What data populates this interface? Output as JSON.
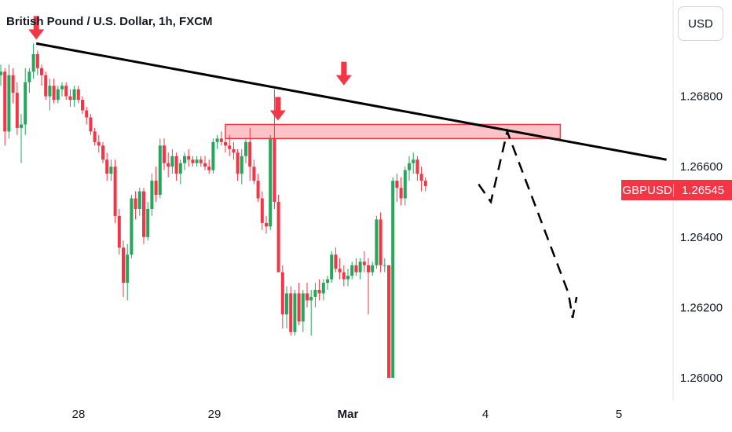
{
  "title": "British Pound / U.S. Dollar, 1h, FXCM",
  "currency_button": "USD",
  "last_price": {
    "symbol": "GBPUSD",
    "value": "1.26545"
  },
  "colors": {
    "up": "#26a65b",
    "down": "#f23645",
    "trendline": "#000000",
    "zone": "#f23645"
  },
  "chart_data": {
    "type": "candlestick",
    "y_ticks": [
      "1.26800",
      "1.26600",
      "1.26400",
      "1.26200",
      "1.26000"
    ],
    "x_ticks": [
      "28",
      "29",
      "Mar",
      "4",
      "5"
    ],
    "ylim": [
      1.2596,
      1.27
    ],
    "grid": false,
    "candles": [
      [
        1.2686,
        1.2689,
        1.2683,
        1.2687
      ],
      [
        1.2687,
        1.2688,
        1.2666,
        1.267
      ],
      [
        1.267,
        1.2689,
        1.2668,
        1.2686
      ],
      [
        1.2686,
        1.2688,
        1.2678,
        1.2681
      ],
      [
        1.2681,
        1.2684,
        1.2669,
        1.2671
      ],
      [
        1.2671,
        1.2675,
        1.2661,
        1.2672
      ],
      [
        1.2672,
        1.2688,
        1.2669,
        1.2684
      ],
      [
        1.2684,
        1.2688,
        1.2681,
        1.2687
      ],
      [
        1.2687,
        1.2695,
        1.2685,
        1.2692
      ],
      [
        1.2692,
        1.2693,
        1.2686,
        1.2688
      ],
      [
        1.2688,
        1.2689,
        1.2683,
        1.2686
      ],
      [
        1.2686,
        1.2687,
        1.2679,
        1.268
      ],
      [
        1.268,
        1.2685,
        1.2676,
        1.2683
      ],
      [
        1.2683,
        1.2685,
        1.2678,
        1.2679
      ],
      [
        1.2679,
        1.2683,
        1.2678,
        1.2682
      ],
      [
        1.2682,
        1.2684,
        1.268,
        1.2683
      ],
      [
        1.2683,
        1.2684,
        1.2679,
        1.268
      ],
      [
        1.268,
        1.2682,
        1.2677,
        1.2679
      ],
      [
        1.2679,
        1.2683,
        1.2677,
        1.2682
      ],
      [
        1.2682,
        1.2683,
        1.2678,
        1.2679
      ],
      [
        1.2679,
        1.268,
        1.2675,
        1.2676
      ],
      [
        1.2676,
        1.2677,
        1.2672,
        1.2674
      ],
      [
        1.2674,
        1.2675,
        1.2669,
        1.267
      ],
      [
        1.267,
        1.2671,
        1.2666,
        1.2667
      ],
      [
        1.2667,
        1.2669,
        1.2664,
        1.2666
      ],
      [
        1.2666,
        1.2667,
        1.2661,
        1.2662
      ],
      [
        1.2662,
        1.2664,
        1.2656,
        1.2658
      ],
      [
        1.2658,
        1.2662,
        1.2656,
        1.266
      ],
      [
        1.266,
        1.2662,
        1.2644,
        1.2646
      ],
      [
        1.2646,
        1.2648,
        1.2635,
        1.2637
      ],
      [
        1.2637,
        1.2639,
        1.2623,
        1.2627
      ],
      [
        1.2627,
        1.2638,
        1.2622,
        1.2635
      ],
      [
        1.2635,
        1.2652,
        1.2634,
        1.2651
      ],
      [
        1.2651,
        1.2653,
        1.2645,
        1.2648
      ],
      [
        1.2648,
        1.2654,
        1.2646,
        1.2653
      ],
      [
        1.2653,
        1.2654,
        1.2638,
        1.264
      ],
      [
        1.264,
        1.265,
        1.2639,
        1.2648
      ],
      [
        1.2648,
        1.2658,
        1.2646,
        1.2656
      ],
      [
        1.2656,
        1.266,
        1.265,
        1.2652
      ],
      [
        1.2652,
        1.2668,
        1.2651,
        1.2666
      ],
      [
        1.2666,
        1.2668,
        1.2659,
        1.2661
      ],
      [
        1.2661,
        1.2664,
        1.2657,
        1.266
      ],
      [
        1.266,
        1.2665,
        1.2658,
        1.2663
      ],
      [
        1.2663,
        1.2664,
        1.2656,
        1.2658
      ],
      [
        1.2658,
        1.2662,
        1.2655,
        1.2661
      ],
      [
        1.2661,
        1.2664,
        1.2659,
        1.2663
      ],
      [
        1.2663,
        1.2665,
        1.266,
        1.2662
      ],
      [
        1.2662,
        1.2663,
        1.266,
        1.2661
      ],
      [
        1.2661,
        1.2663,
        1.266,
        1.2662
      ],
      [
        1.2662,
        1.2663,
        1.266,
        1.2661
      ],
      [
        1.2661,
        1.2663,
        1.2659,
        1.266
      ],
      [
        1.266,
        1.2662,
        1.2658,
        1.2659
      ],
      [
        1.2659,
        1.2668,
        1.2658,
        1.2667
      ],
      [
        1.2667,
        1.2669,
        1.2665,
        1.2668
      ],
      [
        1.2668,
        1.267,
        1.2666,
        1.2667
      ],
      [
        1.2667,
        1.2669,
        1.2664,
        1.2666
      ],
      [
        1.2666,
        1.2669,
        1.2663,
        1.2665
      ],
      [
        1.2665,
        1.2667,
        1.2662,
        1.2664
      ],
      [
        1.2664,
        1.2665,
        1.2656,
        1.2658
      ],
      [
        1.2658,
        1.2665,
        1.2655,
        1.2663
      ],
      [
        1.2663,
        1.2668,
        1.2661,
        1.2667
      ],
      [
        1.2667,
        1.2671,
        1.2656,
        1.266
      ],
      [
        1.266,
        1.2662,
        1.2655,
        1.2656
      ],
      [
        1.2656,
        1.2658,
        1.265,
        1.2651
      ],
      [
        1.2651,
        1.2653,
        1.2642,
        1.2644
      ],
      [
        1.2644,
        1.2646,
        1.2641,
        1.2643
      ],
      [
        1.2643,
        1.2669,
        1.2642,
        1.2668
      ],
      [
        1.2668,
        1.2682,
        1.2648,
        1.265
      ],
      [
        1.265,
        1.2652,
        1.263,
        1.263
      ],
      [
        1.263,
        1.2632,
        1.2614,
        1.2618
      ],
      [
        1.2618,
        1.2626,
        1.2614,
        1.2624
      ],
      [
        1.2624,
        1.2626,
        1.2612,
        1.2613
      ],
      [
        1.2613,
        1.2625,
        1.2612,
        1.2624
      ],
      [
        1.2624,
        1.2627,
        1.2615,
        1.2616
      ],
      [
        1.2616,
        1.2625,
        1.2613,
        1.2624
      ],
      [
        1.2624,
        1.2627,
        1.262,
        1.2622
      ],
      [
        1.2622,
        1.2625,
        1.2612,
        1.2623
      ],
      [
        1.2623,
        1.2627,
        1.262,
        1.2625
      ],
      [
        1.2625,
        1.2628,
        1.2622,
        1.2624
      ],
      [
        1.2624,
        1.2628,
        1.2622,
        1.2627
      ],
      [
        1.2627,
        1.2629,
        1.2625,
        1.2628
      ],
      [
        1.2628,
        1.2636,
        1.2627,
        1.2635
      ],
      [
        1.2635,
        1.2637,
        1.263,
        1.2631
      ],
      [
        1.2631,
        1.2634,
        1.2628,
        1.263
      ],
      [
        1.263,
        1.2632,
        1.2626,
        1.2628
      ],
      [
        1.2628,
        1.2631,
        1.2626,
        1.2629
      ],
      [
        1.2629,
        1.2633,
        1.2628,
        1.2632
      ],
      [
        1.2632,
        1.2634,
        1.2629,
        1.263
      ],
      [
        1.263,
        1.2634,
        1.2628,
        1.2633
      ],
      [
        1.2633,
        1.2636,
        1.263,
        1.2632
      ],
      [
        1.2632,
        1.2634,
        1.2618,
        1.263
      ],
      [
        1.263,
        1.2633,
        1.2629,
        1.2632
      ],
      [
        1.2632,
        1.2646,
        1.2631,
        1.2645
      ],
      [
        1.2645,
        1.2647,
        1.263,
        1.2632
      ],
      [
        1.2632,
        1.2634,
        1.263,
        1.2632
      ],
      [
        1.2632,
        1.2632,
        1.26,
        1.26
      ],
      [
        1.26,
        1.2657,
        1.26,
        1.2656
      ],
      [
        1.2656,
        1.2658,
        1.265,
        1.2654
      ],
      [
        1.2654,
        1.2657,
        1.2649,
        1.2651
      ],
      [
        1.2651,
        1.266,
        1.2649,
        1.2659
      ],
      [
        1.2659,
        1.2663,
        1.2656,
        1.2661
      ],
      [
        1.2661,
        1.2664,
        1.2658,
        1.2662
      ],
      [
        1.2662,
        1.2663,
        1.2656,
        1.2658
      ],
      [
        1.2658,
        1.266,
        1.2653,
        1.2656
      ],
      [
        1.2656,
        1.2657,
        1.2653,
        1.26545
      ]
    ],
    "annotations": {
      "trendline": {
        "x1": 1,
        "y1": 1.2695,
        "x2": 168,
        "y2": 1.2662
      },
      "resistance_zone": {
        "x1": 55,
        "x2": 137,
        "y_top": 1.2672,
        "y_bottom": 1.2668
      },
      "arrows": [
        {
          "x": 1,
          "y": 1.2695
        },
        {
          "x": 59,
          "y": 1.2672
        },
        {
          "x": 74,
          "y": 1.2682
        }
      ],
      "projection": [
        {
          "x": 117,
          "y": 1.2655
        },
        {
          "x": 120,
          "y": 1.265
        },
        {
          "x": 124,
          "y": 1.267
        },
        {
          "x": 139,
          "y": 1.2624
        },
        {
          "x": 140,
          "y": 1.2617
        },
        {
          "x": 141,
          "y": 1.2623
        }
      ]
    }
  }
}
